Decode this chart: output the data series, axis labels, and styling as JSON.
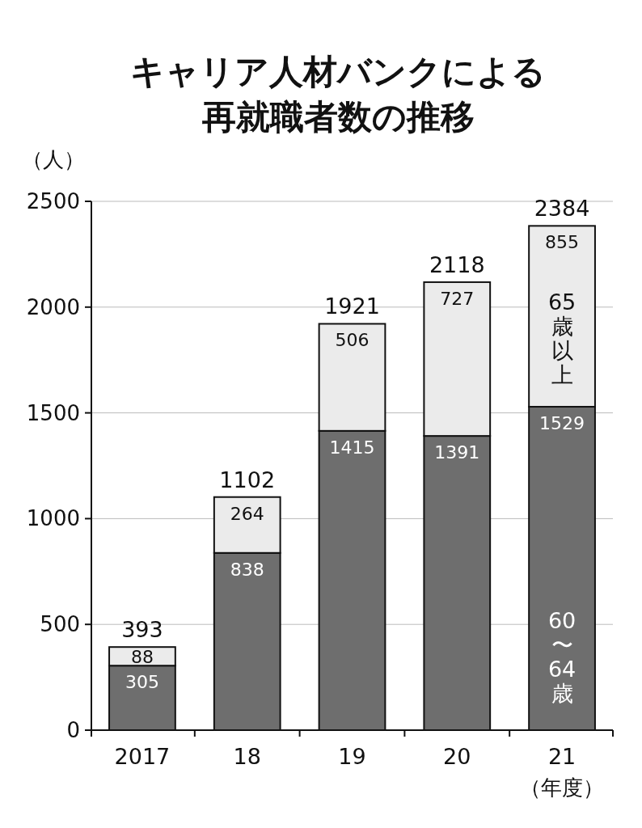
{
  "chart_data": {
    "type": "bar",
    "title": "キャリア人材バンクによる再就職者数の推移",
    "ylabel": "（人）",
    "xlabel": "（年度）",
    "categories": [
      "2017",
      "18",
      "19",
      "20",
      "21"
    ],
    "stacked": true,
    "series": [
      {
        "name": "60〜64歳",
        "color": "#6e6e6e",
        "values": [
          305,
          838,
          1415,
          1391,
          1529
        ]
      },
      {
        "name": "65歳以上",
        "color": "#ebebeb",
        "values": [
          88,
          264,
          506,
          727,
          855
        ]
      }
    ],
    "totals": [
      "393",
      "1102",
      "1921",
      "2118",
      "2384"
    ],
    "data_labels": true,
    "ylim": [
      0,
      2500
    ],
    "yticks": [
      0,
      500,
      1000,
      1500,
      2000,
      2500
    ],
    "grid": "y"
  }
}
